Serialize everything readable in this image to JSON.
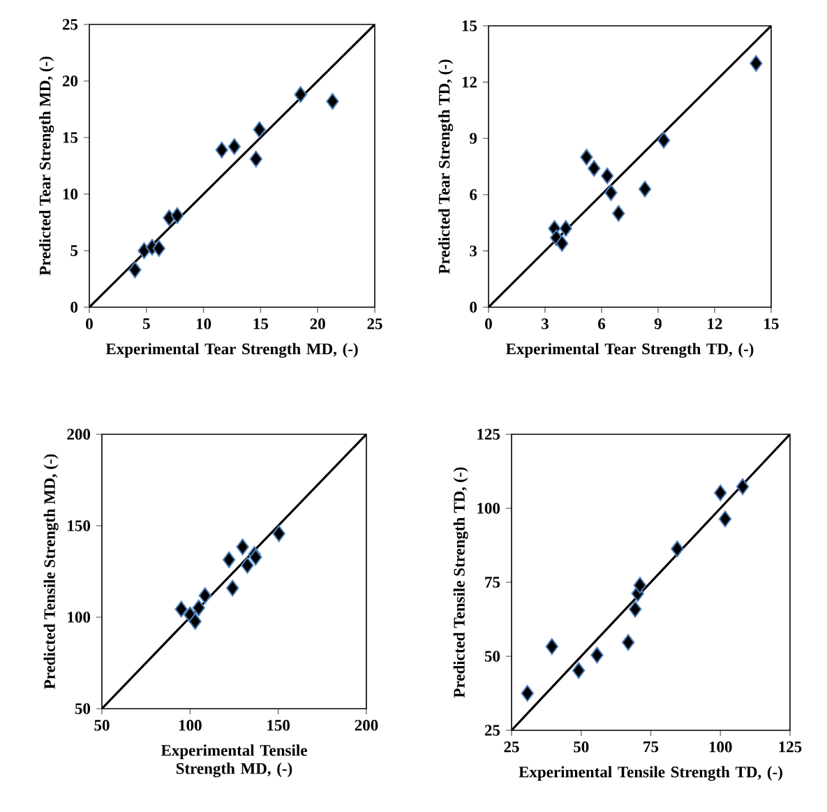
{
  "chart_data": [
    {
      "type": "scatter",
      "xlabel": "Experimental Tear Strength MD, (-)",
      "ylabel": "Predicted Tear Strength MD, (-)",
      "xlim": [
        0,
        25
      ],
      "ylim": [
        0,
        25
      ],
      "xticks": [
        0,
        5,
        10,
        15,
        20,
        25
      ],
      "yticks": [
        0,
        5,
        10,
        15,
        20,
        25
      ],
      "series": [
        {
          "marker": "diamond",
          "color": "#000000",
          "x": [
            4.0,
            4.8,
            5.5,
            6.1,
            7.0,
            7.7,
            11.6,
            12.7,
            14.6,
            14.9,
            18.5,
            21.3
          ],
          "values": [
            3.3,
            5.0,
            5.3,
            5.2,
            7.9,
            8.1,
            13.9,
            14.2,
            13.1,
            15.7,
            18.8,
            18.2
          ]
        },
        {
          "type": "line",
          "color": "#000000",
          "x": [
            0,
            25
          ],
          "values": [
            0,
            25
          ]
        }
      ]
    },
    {
      "type": "scatter",
      "xlabel": "Experimental Tear Strength TD, (-)",
      "ylabel": "Predicted Tear Strength TD, (-)",
      "xlim": [
        0,
        15
      ],
      "ylim": [
        0,
        15
      ],
      "xticks": [
        0,
        3,
        6,
        9,
        12,
        15
      ],
      "yticks": [
        0,
        3,
        6,
        9,
        12,
        15
      ],
      "series": [
        {
          "marker": "diamond",
          "color": "#000000",
          "x": [
            3.5,
            3.6,
            3.9,
            4.1,
            5.2,
            5.6,
            6.3,
            6.5,
            6.9,
            8.3,
            9.3,
            14.2
          ],
          "values": [
            4.2,
            3.7,
            3.4,
            4.2,
            8.0,
            7.4,
            7.0,
            6.1,
            5.0,
            6.3,
            8.9,
            13.0
          ]
        },
        {
          "type": "line",
          "color": "#000000",
          "x": [
            0,
            15
          ],
          "values": [
            0,
            15
          ]
        }
      ]
    },
    {
      "type": "scatter",
      "xlabel": "Experimental Tensile Strength MD, (-)",
      "ylabel": "Predicted Tensile Strength MD, (-)",
      "xlim": [
        50,
        200
      ],
      "ylim": [
        50,
        200
      ],
      "xticks": [
        50,
        100,
        150,
        200
      ],
      "yticks": [
        50,
        100,
        150,
        200
      ],
      "series": [
        {
          "marker": "diamond",
          "color": "#000000",
          "x": [
            95.0,
            100.0,
            102.9,
            104.9,
            108.5,
            122.1,
            124.1,
            129.8,
            132.5,
            136.5,
            137.2,
            150.4
          ],
          "values": [
            104.4,
            101.3,
            97.7,
            105.1,
            111.8,
            131.4,
            115.9,
            138.4,
            128.3,
            134.3,
            132.8,
            145.7
          ]
        },
        {
          "type": "line",
          "color": "#000000",
          "x": [
            50,
            200
          ],
          "values": [
            50,
            200
          ]
        }
      ]
    },
    {
      "type": "scatter",
      "xlabel": "Experimental Tensile Strength TD, (-)",
      "ylabel": "Predicted Tensile Strength TD, (-)",
      "xlim": [
        25,
        125
      ],
      "ylim": [
        25,
        125
      ],
      "xticks": [
        25,
        50,
        75,
        100,
        125
      ],
      "yticks": [
        25,
        50,
        75,
        100,
        125
      ],
      "series": [
        {
          "marker": "diamond",
          "color": "#000000",
          "x": [
            30.7,
            39.5,
            49.1,
            55.7,
            66.9,
            69.4,
            70.3,
            71.1,
            84.5,
            100.0,
            101.7,
            108.0
          ],
          "values": [
            37.5,
            53.3,
            45.2,
            50.4,
            54.7,
            65.9,
            71.2,
            74.0,
            86.3,
            105.2,
            96.4,
            107.3
          ]
        },
        {
          "type": "line",
          "color": "#000000",
          "x": [
            25,
            125
          ],
          "values": [
            25,
            125
          ]
        }
      ]
    }
  ]
}
